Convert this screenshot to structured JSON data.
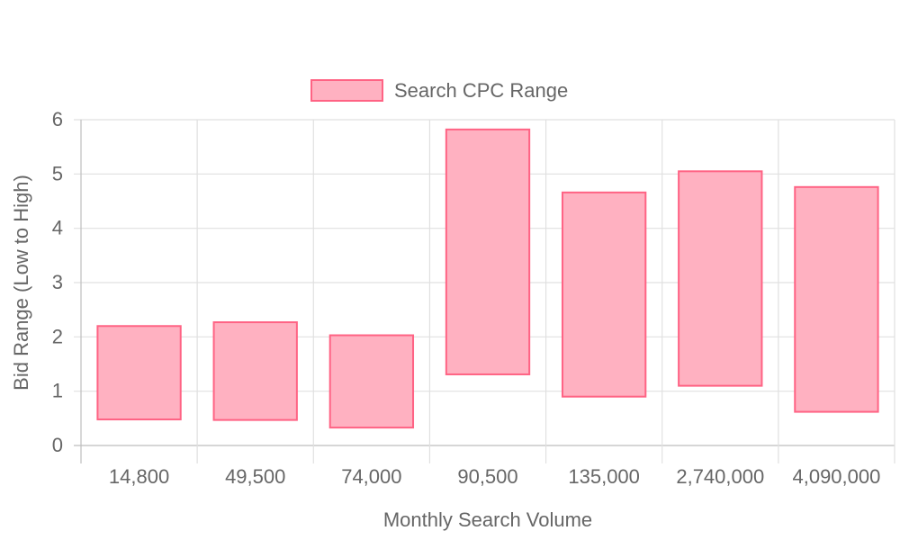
{
  "chart_data": {
    "type": "bar",
    "subtype": "floating-range",
    "categories": [
      "14,800",
      "49,500",
      "74,000",
      "90,500",
      "135,000",
      "2,740,000",
      "4,090,000"
    ],
    "series": [
      {
        "name": "Search CPC Range",
        "low": [
          0.48,
          0.47,
          0.33,
          1.31,
          0.9,
          1.1,
          0.62
        ],
        "high": [
          2.2,
          2.27,
          2.03,
          5.82,
          4.66,
          5.05,
          4.76
        ],
        "color": "#ffb1c1",
        "border_color": "#ff6384"
      }
    ],
    "xlabel": "Monthly Search Volume",
    "ylabel": "Bid Range (Low to High)",
    "ylim": [
      0,
      6
    ],
    "yticks": [
      0,
      1,
      2,
      3,
      4,
      5,
      6
    ],
    "grid": true,
    "legend_position": "top"
  }
}
